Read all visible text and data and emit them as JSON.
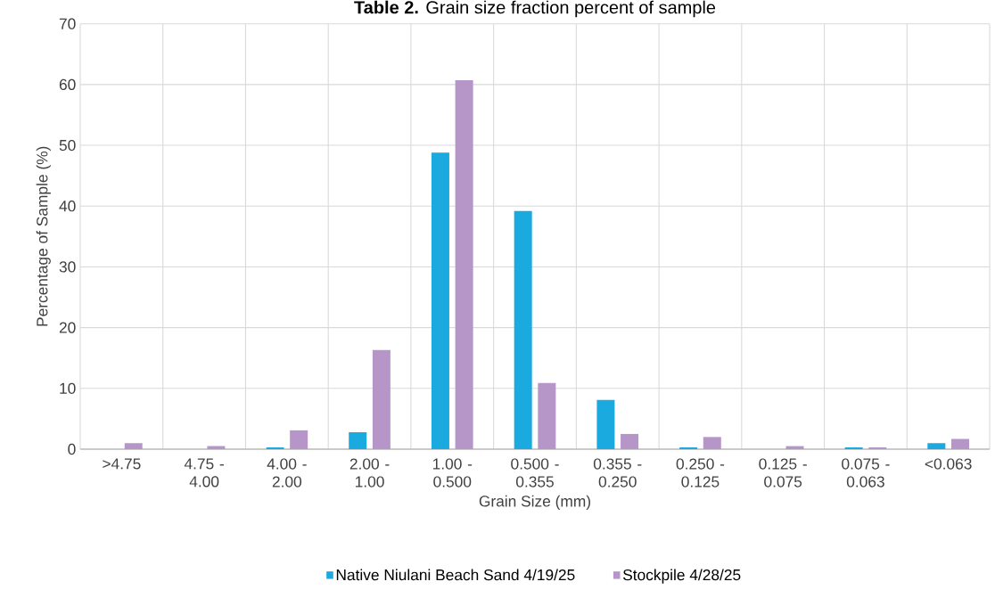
{
  "chart_data": {
    "type": "bar",
    "title": "**Table 2.** Grain size fraction percent of sample",
    "xlabel": "Grain Size (mm)",
    "ylabel": "Percentage of Sample (%)",
    "categories": [
      ">4.75",
      "4.75 - 4.00",
      "4.00 - 2.00",
      "2.00 - 1.00",
      "1.00 - 0.500",
      "0.500 - 0.355",
      "0.355 - 0.250",
      "0.250 - 0.125",
      "0.125 - 0.075",
      "0.075 - 0.063",
      "<0.063"
    ],
    "series": [
      {
        "name": "Native Niulani Beach Sand 4/19/25",
        "color": "#1aaae0",
        "values": [
          null,
          null,
          0.3,
          2.8,
          48.8,
          39.2,
          8.1,
          0.3,
          null,
          0.3,
          1.0
        ]
      },
      {
        "name": "Stockpile 4/28/25",
        "color": "#b695c8",
        "values": [
          1.0,
          0.5,
          3.1,
          16.3,
          60.7,
          10.9,
          2.5,
          2.0,
          0.5,
          0.3,
          1.7
        ]
      }
    ],
    "ylim": [
      0,
      70
    ],
    "yticks": [
      0,
      10,
      20,
      30,
      40,
      50,
      60,
      70
    ],
    "grid": true,
    "legend": "bottom"
  }
}
